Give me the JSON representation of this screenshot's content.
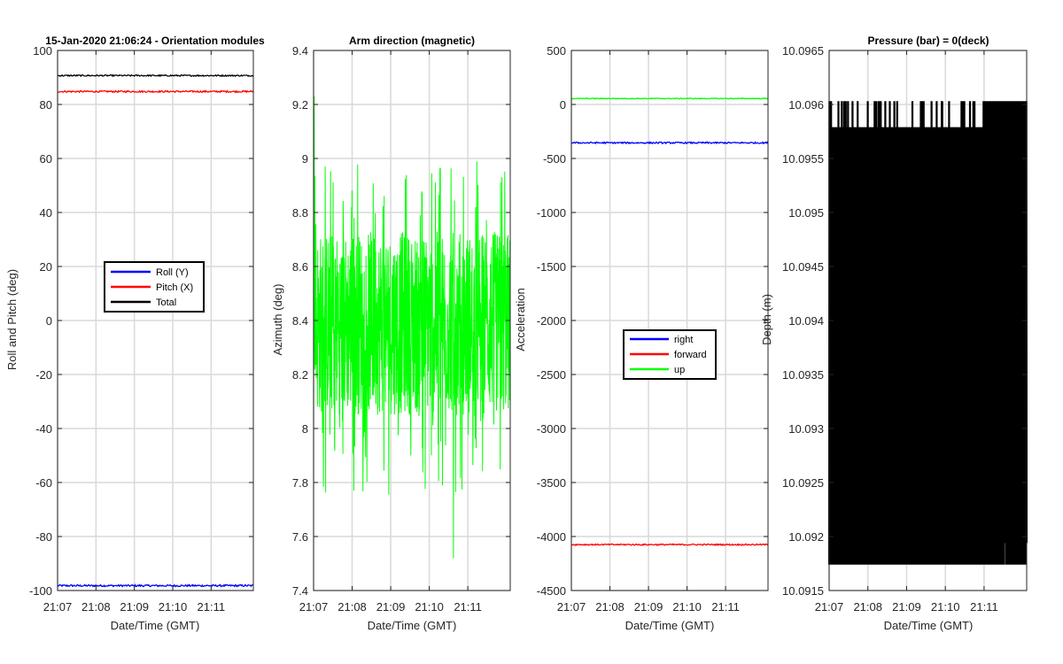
{
  "chart_data": [
    {
      "type": "line",
      "title": "15-Jan-2020 21:06:24 - Orientation modules",
      "xlabel": "Date/Time (GMT)",
      "ylabel": "Roll and Pitch (deg)",
      "xlim": [
        0,
        5.1
      ],
      "x_ticks": [
        0,
        1,
        2,
        3,
        4
      ],
      "x_tick_labels": [
        "21:07",
        "21:08",
        "21:09",
        "21:10",
        "21:11"
      ],
      "ylim": [
        -100,
        100
      ],
      "y_ticks": [
        100,
        80,
        60,
        40,
        20,
        0,
        -20,
        -40,
        -60,
        -80,
        -100
      ],
      "y_tick_labels": [
        "100",
        "80",
        "60",
        "40",
        "20",
        "0",
        "-20",
        "-40",
        "-60",
        "-80",
        "-100"
      ],
      "grid": true,
      "legend_position": "center",
      "series": [
        {
          "name": "Roll (Y)",
          "color": "#0000ff",
          "mean": -98.2,
          "noise": 0.35,
          "kind": "flat"
        },
        {
          "name": "Pitch (X)",
          "color": "#ff0000",
          "mean": 84.8,
          "noise": 0.3,
          "kind": "flat"
        },
        {
          "name": "Total",
          "color": "#000000",
          "mean": 90.7,
          "noise": 0.25,
          "kind": "flat"
        }
      ]
    },
    {
      "type": "line",
      "title": "Arm direction (magnetic)",
      "xlabel": "Date/Time (GMT)",
      "ylabel": "Azimuth (deg)",
      "xlim": [
        0,
        5.1
      ],
      "x_ticks": [
        0,
        1,
        2,
        3,
        4
      ],
      "x_tick_labels": [
        "21:07",
        "21:08",
        "21:09",
        "21:10",
        "21:11"
      ],
      "ylim": [
        7.4,
        9.4
      ],
      "y_ticks": [
        9.4,
        9.2,
        9,
        8.8,
        8.6,
        8.4,
        8.2,
        8,
        7.8,
        7.6,
        7.4
      ],
      "y_tick_labels": [
        "9.4",
        "9.2",
        "9",
        "8.8",
        "8.6",
        "8.4",
        "8.2",
        "8",
        "7.8",
        "7.6",
        "7.4"
      ],
      "grid": true,
      "series": [
        {
          "name": "Azimuth",
          "color": "#00ff00",
          "mean": 8.38,
          "kind": "azimuth",
          "min": 7.52,
          "max": 9.23
        }
      ]
    },
    {
      "type": "line",
      "title": "",
      "xlabel": "Date/Time (GMT)",
      "ylabel": "Acceleration",
      "xlim": [
        0,
        5.1
      ],
      "x_ticks": [
        0,
        1,
        2,
        3,
        4
      ],
      "x_tick_labels": [
        "21:07",
        "21:08",
        "21:09",
        "21:10",
        "21:11"
      ],
      "ylim": [
        -4500,
        500
      ],
      "y_ticks": [
        500,
        0,
        -500,
        -1000,
        -1500,
        -2000,
        -2500,
        -3000,
        -3500,
        -4000,
        -4500
      ],
      "y_tick_labels": [
        "500",
        "0",
        "-500",
        "-1000",
        "-1500",
        "-2000",
        "-2500",
        "-3000",
        "-3500",
        "-4000",
        "-4500"
      ],
      "grid": true,
      "legend_position": "center",
      "series": [
        {
          "name": "right",
          "color": "#0000ff",
          "mean": -355,
          "noise": 7,
          "kind": "flat"
        },
        {
          "name": "forward",
          "color": "#ff0000",
          "mean": -4075,
          "noise": 6,
          "kind": "flat"
        },
        {
          "name": "up",
          "color": "#00ff00",
          "mean": 55,
          "noise": 4,
          "kind": "flat"
        }
      ]
    },
    {
      "type": "line",
      "title": "Pressure (bar) = 0(deck)",
      "xlabel": "Date/Time (GMT)",
      "ylabel": "Depth (m)",
      "xlim": [
        0,
        5.1
      ],
      "x_ticks": [
        0,
        1,
        2,
        3,
        4
      ],
      "x_tick_labels": [
        "21:07",
        "21:08",
        "21:09",
        "21:10",
        "21:11"
      ],
      "ylim": [
        10.0915,
        10.0965
      ],
      "y_ticks": [
        10.0965,
        10.096,
        10.0955,
        10.095,
        10.0945,
        10.094,
        10.0935,
        10.093,
        10.0925,
        10.092,
        10.0915
      ],
      "y_tick_labels": [
        "10.0965",
        "10.096",
        "10.0955",
        "10.095",
        "10.0945",
        "10.094",
        "10.0935",
        "10.093",
        "10.0925",
        "10.092",
        "10.0915"
      ],
      "grid": true,
      "series": [
        {
          "name": "Depth",
          "color": "#000000",
          "kind": "depth",
          "levels": [
            10.09174,
            10.09399,
            10.09579,
            10.09603
          ]
        }
      ]
    }
  ]
}
